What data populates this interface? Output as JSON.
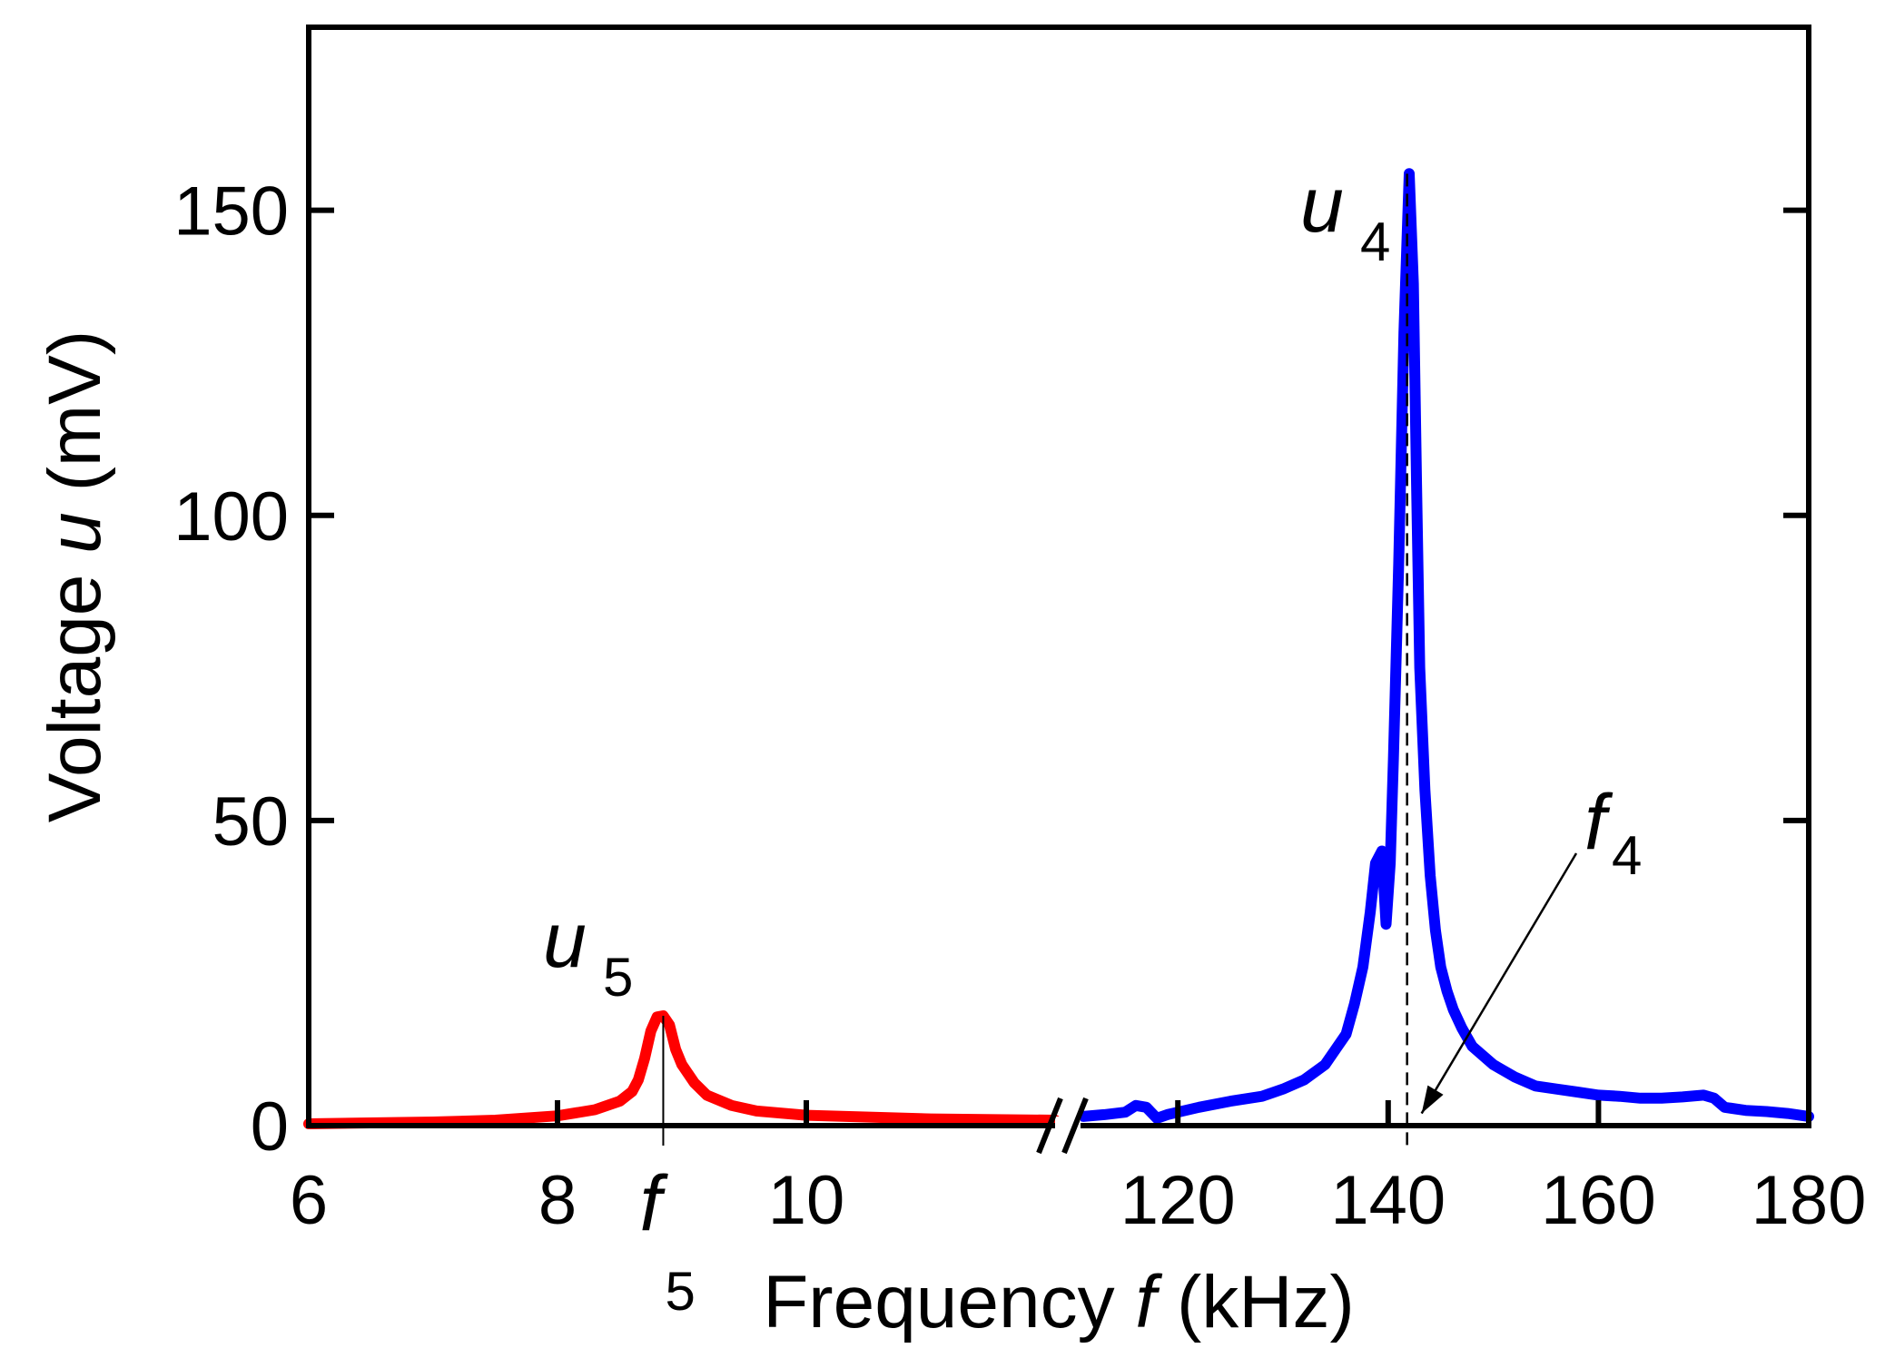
{
  "chart_data": {
    "type": "line",
    "title": "",
    "xlabel": {
      "prefix": "Frequency ",
      "italic": "f",
      "suffix": " (kHz)"
    },
    "ylabel": {
      "prefix": "Voltage ",
      "italic": "u",
      "suffix": " (mV)"
    },
    "ylim": [
      0,
      180
    ],
    "yticks": [
      0,
      50,
      100,
      150
    ],
    "ytick_labels": [
      "0",
      "50",
      "100",
      "150"
    ],
    "x_break": true,
    "segments": [
      {
        "name": "low",
        "xlim": [
          6,
          12
        ],
        "xticks": [
          6,
          8,
          10
        ],
        "xtick_labels": [
          "6",
          "8",
          "10"
        ]
      },
      {
        "name": "high",
        "xlim": [
          111,
          180
        ],
        "xticks": [
          120,
          140,
          160,
          180
        ],
        "xtick_labels": [
          "120",
          "140",
          "160",
          "180"
        ]
      }
    ],
    "series": [
      {
        "name": "u5",
        "color": "#ff0000",
        "segment": "low",
        "x": [
          6.0,
          7.0,
          7.5,
          8.0,
          8.3,
          8.5,
          8.6,
          8.65,
          8.7,
          8.75,
          8.8,
          8.85,
          8.9,
          8.95,
          9.0,
          9.1,
          9.2,
          9.4,
          9.6,
          10.0,
          11.0,
          12.0
        ],
        "y": [
          0.3,
          0.6,
          0.9,
          1.6,
          2.6,
          4.0,
          5.6,
          7.5,
          11.0,
          15.5,
          17.8,
          18.0,
          16.5,
          12.5,
          10.0,
          7.0,
          5.0,
          3.3,
          2.4,
          1.7,
          1.1,
          0.9
        ]
      },
      {
        "name": "u4",
        "color": "#0000ff",
        "segment": "high",
        "x": [
          111,
          113,
          115,
          116,
          117,
          118,
          119,
          120,
          122,
          125,
          128,
          130,
          132,
          134,
          135,
          136,
          136.8,
          137.6,
          138.3,
          138.8,
          139.4,
          139.8,
          140.2,
          140.5,
          141.0,
          141.5,
          142.0,
          142.4,
          142.7,
          143.0,
          143.5,
          144.0,
          144.5,
          145.0,
          145.6,
          146.2,
          147,
          148,
          150,
          152,
          154,
          156,
          158,
          160,
          162,
          164,
          166,
          168,
          170,
          171,
          172,
          174,
          176,
          178,
          180
        ],
        "y": [
          1.5,
          1.8,
          2.2,
          3.3,
          3.0,
          1.2,
          1.8,
          2.2,
          3.0,
          4.0,
          4.8,
          6.0,
          7.5,
          10.0,
          12.5,
          15.0,
          20.0,
          26.0,
          35.0,
          43.0,
          45.0,
          33.0,
          43.0,
          60.0,
          92.0,
          130.0,
          156.0,
          138.0,
          105.0,
          75.0,
          55.0,
          41.0,
          32.0,
          26.0,
          22.0,
          19.0,
          16.0,
          13.0,
          10.0,
          8.0,
          6.5,
          6.0,
          5.5,
          5.0,
          4.8,
          4.5,
          4.5,
          4.7,
          5.0,
          4.5,
          3.0,
          2.5,
          2.3,
          2.0,
          1.5
        ]
      }
    ],
    "annotations": [
      {
        "id": "u5",
        "italic": "u",
        "sub": "5"
      },
      {
        "id": "u4",
        "italic": "u",
        "sub": "4"
      },
      {
        "id": "f5",
        "italic": "f",
        "sub": "5",
        "x": 8.85
      },
      {
        "id": "f4",
        "italic": "f",
        "sub": "4",
        "x": 141.8
      }
    ]
  }
}
